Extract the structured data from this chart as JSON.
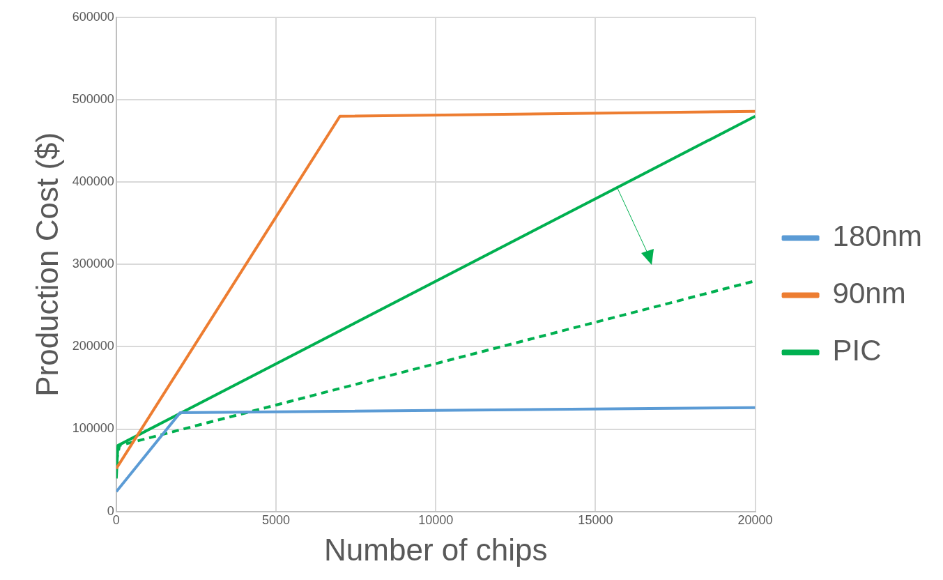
{
  "chart_data": {
    "type": "line",
    "xlabel": "Number of chips",
    "ylabel": "Production Cost ($)",
    "xlim": [
      0,
      20000
    ],
    "xticks": [
      0,
      5000,
      10000,
      15000,
      20000
    ],
    "ylim": [
      0,
      600000
    ],
    "yticks": [
      0,
      100000,
      200000,
      300000,
      400000,
      500000,
      600000
    ],
    "grid": true,
    "legend": "right",
    "marker": "none",
    "series": [
      {
        "name": "180nm",
        "color": "#5b9bd5",
        "x": [
          0,
          2000,
          20000
        ],
        "values": [
          24000,
          120000,
          126000
        ]
      },
      {
        "name": "90nm",
        "color": "#ed7d31",
        "x": [
          0,
          7000,
          20000
        ],
        "values": [
          52000,
          480000,
          486000
        ]
      },
      {
        "name": "PIC",
        "color": "#00b050",
        "x": [
          0,
          50,
          20000
        ],
        "values": [
          40000,
          80000,
          480000
        ]
      },
      {
        "color": "#00b050",
        "line_style": "dashed",
        "x": [
          0,
          100,
          20000
        ],
        "values": [
          60000,
          80000,
          280000
        ]
      }
    ]
  }
}
